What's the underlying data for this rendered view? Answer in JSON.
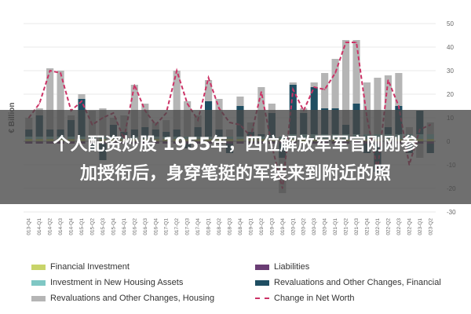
{
  "headline": {
    "line1": "个人配资炒股 1955年，四位解放军军官刚刚参",
    "line2": "加授衔后，身穿笔挺的军装来到附近的照"
  },
  "legend": [
    {
      "label": "Financial Investment",
      "color": "#c8d46a",
      "style": "bar"
    },
    {
      "label": "Liabilities",
      "color": "#6a3d74",
      "style": "bar"
    },
    {
      "label": "Investment in New Housing Assets",
      "color": "#7fc7c4",
      "style": "bar"
    },
    {
      "label": "Revaluations and Other Changes, Financial",
      "color": "#1f4e62",
      "style": "bar"
    },
    {
      "label": "Revaluations and Other Changes, Housing",
      "color": "#b5b5b5",
      "style": "bar"
    },
    {
      "label": "Change in Net Worth",
      "color": "#cc3366",
      "style": "dash"
    }
  ],
  "chart_data": {
    "type": "bar",
    "ylabel": "€ Billion",
    "ylim": [
      -30,
      50
    ],
    "yticks": [
      -30,
      -20,
      -10,
      0,
      10,
      20,
      30,
      40,
      50
    ],
    "categories": [
      "2013-Q4",
      "2014-Q1",
      "2014-Q2",
      "2014-Q3",
      "2014-Q4",
      "2015-Q1",
      "2015-Q2",
      "2015-Q3",
      "2015-Q4",
      "2016-Q1",
      "2016-Q2",
      "2016-Q3",
      "2016-Q4",
      "2017-Q1",
      "2017-Q2",
      "2017-Q3",
      "2017-Q4",
      "2018-Q1",
      "2018-Q2",
      "2018-Q3",
      "2018-Q4",
      "2019-Q1",
      "2019-Q2",
      "2019-Q3",
      "2019-Q4",
      "2020-Q1",
      "2020-Q2",
      "2020-Q3",
      "2020-Q4",
      "2021-Q1",
      "2021-Q2",
      "2021-Q3",
      "2021-Q4",
      "2022-Q1",
      "2022-Q2",
      "2022-Q3",
      "2022-Q4",
      "2023-Q1",
      "2023-Q2"
    ],
    "series": [
      {
        "name": "Financial Investment",
        "color": "#c8d46a",
        "values": [
          1,
          1,
          1,
          1,
          1,
          1,
          1,
          1,
          1,
          1,
          1,
          1,
          1,
          1,
          1,
          1,
          1,
          1,
          1,
          1,
          1,
          1,
          1,
          1,
          1,
          1,
          1,
          1,
          1,
          1,
          1,
          1,
          1,
          1,
          1,
          1,
          1,
          1,
          1
        ]
      },
      {
        "name": "Liabilities",
        "color": "#6a3d74",
        "values": [
          -1,
          -1,
          -1,
          -1,
          -1,
          -1,
          -1,
          -1,
          -1,
          -1,
          -1,
          -1,
          -1,
          -1,
          -1,
          -1,
          -1,
          -1,
          -1,
          -1,
          -1,
          -1,
          -1,
          -1,
          -1,
          -1,
          -1,
          -1,
          -1,
          -1,
          -1,
          -1,
          -1,
          -1,
          -1,
          -1,
          -1,
          -1,
          -1
        ]
      },
      {
        "name": "Investment in New Housing Assets",
        "color": "#7fc7c4",
        "values": [
          1,
          1,
          1,
          1,
          1,
          1,
          1,
          1,
          1,
          1,
          1,
          1,
          1,
          1,
          1,
          1,
          1,
          1,
          1,
          1,
          1,
          1,
          1,
          1,
          1,
          2,
          2,
          2,
          2,
          2,
          2,
          2,
          2,
          2,
          2,
          2,
          2,
          2,
          2
        ]
      },
      {
        "name": "Revaluations and Other Changes, Financial",
        "color": "#1f4e62",
        "values": [
          3,
          9,
          3,
          3,
          7,
          16,
          -3,
          -7,
          5,
          2,
          3,
          4,
          3,
          2,
          3,
          -2,
          4,
          15,
          3,
          -4,
          13,
          2,
          1,
          10,
          -6,
          21,
          9,
          20,
          11,
          11,
          4,
          13,
          -4,
          -12,
          3,
          12,
          -4,
          10,
          -4
        ]
      },
      {
        "name": "Revaluations and Other Changes, Housing",
        "color": "#b5b5b5",
        "values": [
          5,
          3,
          26,
          25,
          2,
          2,
          11,
          12,
          3,
          7,
          19,
          10,
          3,
          5,
          25,
          15,
          5,
          9,
          13,
          3,
          4,
          4,
          20,
          4,
          -15,
          1,
          2,
          2,
          15,
          21,
          36,
          27,
          22,
          24,
          22,
          14,
          3,
          -6,
          5
        ]
      }
    ],
    "net_worth": {
      "name": "Change in Net Worth",
      "color": "#cc3366",
      "values": [
        10,
        16,
        30,
        29,
        13,
        17,
        7,
        10,
        12,
        1,
        24,
        13,
        7,
        12,
        30,
        16,
        9,
        27,
        14,
        8,
        7,
        2,
        21,
        -2,
        -20,
        22,
        13,
        23,
        22,
        29,
        42,
        42,
        10,
        -12,
        26,
        15,
        -10,
        5,
        7
      ]
    }
  }
}
